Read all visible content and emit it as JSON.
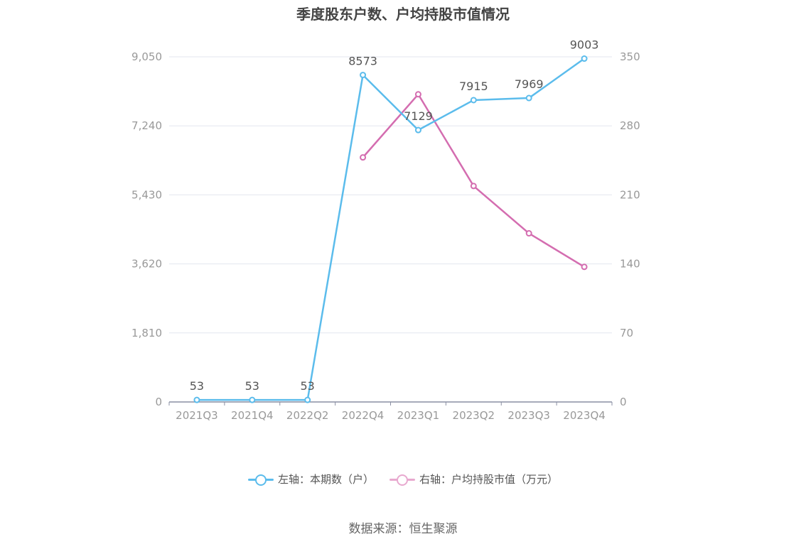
{
  "title": "季度股东户数、户均持股市值情况",
  "source": "数据来源：恒生聚源",
  "colors": {
    "left_series": "#5bbcec",
    "right_series": "#d46db0",
    "grid": "#e3e6ef",
    "axis_text": "#999999",
    "label_text": "#555555"
  },
  "chart_data": {
    "type": "line",
    "title": "季度股东户数、户均持股市值情况",
    "categories": [
      "2021Q3",
      "2021Q4",
      "2022Q2",
      "2022Q4",
      "2023Q1",
      "2023Q2",
      "2023Q3",
      "2023Q4"
    ],
    "y_left": {
      "ticks": [
        "0",
        "1,810",
        "3,620",
        "5,430",
        "7,240",
        "9,050"
      ],
      "range": [
        0,
        9050
      ]
    },
    "y_right": {
      "ticks": [
        "0",
        "70",
        "140",
        "210",
        "280",
        "350"
      ],
      "range": [
        0,
        350
      ]
    },
    "series": [
      {
        "name": "左轴：本期数（户）",
        "axis": "left",
        "color": "#5bbcec",
        "values": [
          53,
          53,
          53,
          8573,
          7129,
          7915,
          7969,
          9003
        ],
        "labels": [
          "53",
          "53",
          "53",
          "8573",
          "7129",
          "7915",
          "7969",
          "9003"
        ]
      },
      {
        "name": "右轴：户均持股市值（万元）",
        "axis": "right",
        "color": "#d46db0",
        "values": [
          null,
          null,
          null,
          248,
          312,
          219,
          171,
          137
        ]
      }
    ],
    "grid": true,
    "legend_position": "bottom"
  }
}
